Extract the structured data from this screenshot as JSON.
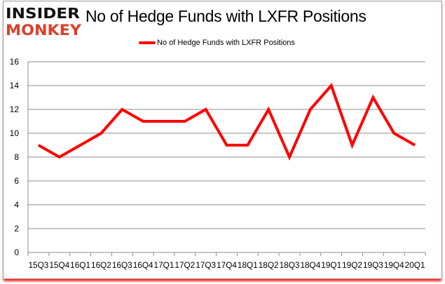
{
  "logo": {
    "line1": "INSIDER",
    "line2": "MONKEY"
  },
  "chart_data": {
    "type": "line",
    "title": "No of Hedge Funds with LXFR Positions",
    "xlabel": "",
    "ylabel": "",
    "categories": [
      "15Q3",
      "15Q4",
      "16Q1",
      "16Q2",
      "16Q3",
      "16Q4",
      "17Q1",
      "17Q2",
      "17Q3",
      "17Q4",
      "18Q1",
      "18Q2",
      "18Q3",
      "18Q4",
      "19Q1",
      "19Q2",
      "19Q3",
      "19Q4",
      "20Q1"
    ],
    "series": [
      {
        "name": "No of Hedge Funds with LXFR Positions",
        "color": "#ff0000",
        "values": [
          9,
          8,
          9,
          10,
          12,
          11,
          11,
          11,
          12,
          9,
          9,
          12,
          8,
          12,
          14,
          9,
          13,
          10,
          9
        ]
      }
    ],
    "ylim": [
      0,
      16
    ],
    "yticks": [
      0,
      2,
      4,
      6,
      8,
      10,
      12,
      14,
      16
    ],
    "grid": true,
    "legend": "top"
  }
}
